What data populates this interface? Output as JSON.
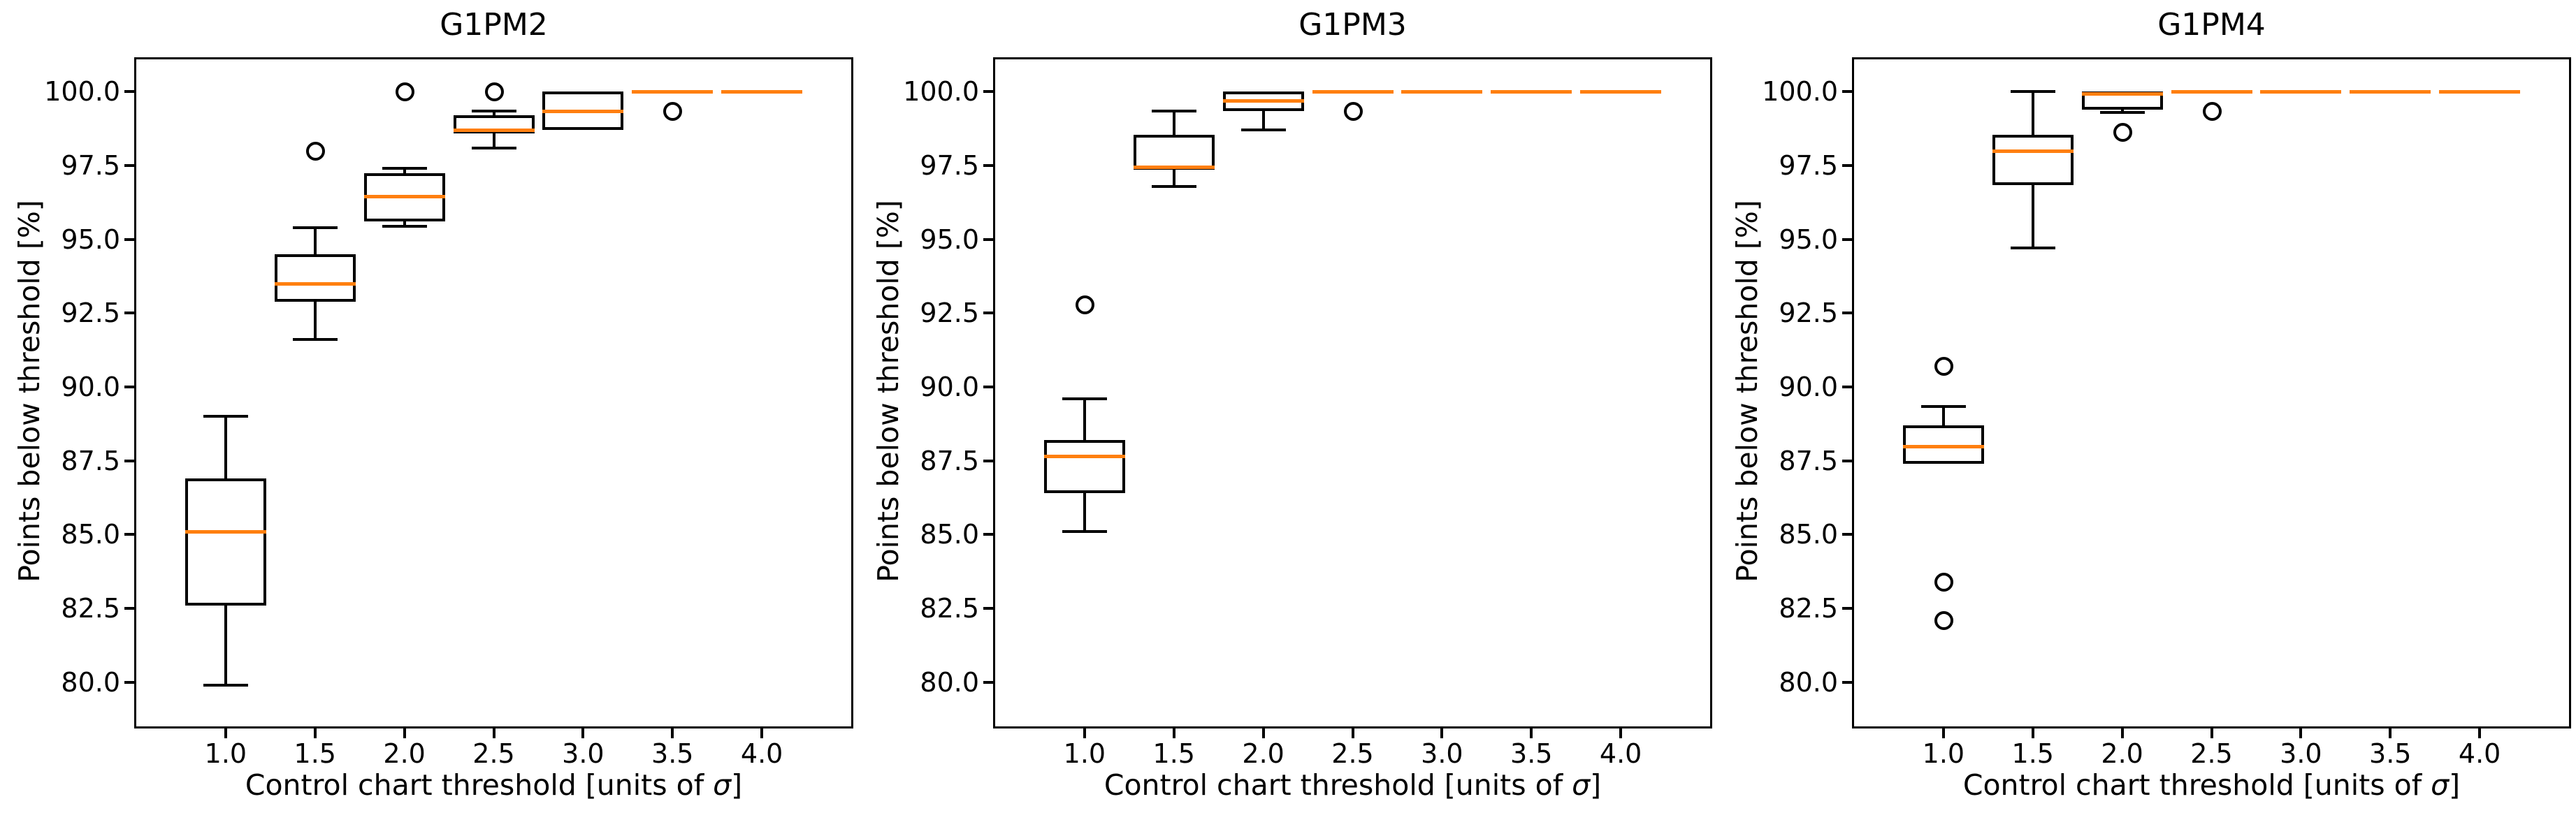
{
  "figure": {
    "background_color": "#ffffff",
    "box_line_color": "#000000",
    "median_color": "#ff7f0e",
    "flier_outline_color": "#000000"
  },
  "chart_data": [
    {
      "type": "boxplot",
      "title": "G1PM2",
      "xlabel": "Control chart threshold [units of σ]",
      "xlabel_pre": "Control chart threshold [units of ",
      "xlabel_sigma": "σ",
      "xlabel_post": "]",
      "ylabel": "Points below threshold [%]",
      "grid": "off",
      "legend": "none",
      "ylim": [
        78.5,
        101.1
      ],
      "xlim": [
        0,
        8
      ],
      "y_tick_values": [
        100.0,
        97.5,
        95.0,
        92.5,
        90.0,
        87.5,
        85.0,
        82.5,
        80.0
      ],
      "y_tick_labels": [
        "100.0",
        "97.5",
        "95.0",
        "92.5",
        "90.0",
        "87.5",
        "85.0",
        "82.5",
        "80.0"
      ],
      "x_tick_positions": [
        1,
        2,
        3,
        4,
        5,
        6,
        7
      ],
      "x_tick_labels": [
        "1.0",
        "1.5",
        "2.0",
        "2.5",
        "3.0",
        "3.5",
        "4.0"
      ],
      "boxes": [
        {
          "position": 1,
          "label": "1.0",
          "whislo": 79.9,
          "q1": 82.6,
          "med": 85.1,
          "q3": 86.9,
          "whishi": 89.0,
          "fliers": []
        },
        {
          "position": 2,
          "label": "1.5",
          "whislo": 91.6,
          "q1": 92.9,
          "med": 93.5,
          "q3": 94.5,
          "whishi": 95.4,
          "fliers": [
            98.0
          ]
        },
        {
          "position": 3,
          "label": "2.0",
          "whislo": 95.45,
          "q1": 95.6,
          "med": 96.45,
          "q3": 97.25,
          "whishi": 97.4,
          "fliers": [
            100.0
          ]
        },
        {
          "position": 4,
          "label": "2.5",
          "whislo": 98.1,
          "q1": 98.6,
          "med": 98.7,
          "q3": 99.2,
          "whishi": 99.35,
          "fliers": [
            100.0
          ]
        },
        {
          "position": 5,
          "label": "3.0",
          "whislo": 98.7,
          "q1": 98.7,
          "med": 99.35,
          "q3": 100.0,
          "whishi": 100.0,
          "fliers": []
        },
        {
          "position": 6,
          "label": "3.5",
          "whislo": 100.0,
          "q1": 100.0,
          "med": 100.0,
          "q3": 100.0,
          "whishi": 100.0,
          "fliers": [
            99.35
          ]
        },
        {
          "position": 7,
          "label": "4.0",
          "whislo": 100.0,
          "q1": 100.0,
          "med": 100.0,
          "q3": 100.0,
          "whishi": 100.0,
          "fliers": []
        }
      ]
    },
    {
      "type": "boxplot",
      "title": "G1PM3",
      "xlabel": "Control chart threshold [units of σ]",
      "xlabel_pre": "Control chart threshold [units of ",
      "xlabel_sigma": "σ",
      "xlabel_post": "]",
      "ylabel": "Points below threshold [%]",
      "grid": "off",
      "legend": "none",
      "ylim": [
        78.5,
        101.1
      ],
      "xlim": [
        0,
        8
      ],
      "y_tick_values": [
        100.0,
        97.5,
        95.0,
        92.5,
        90.0,
        87.5,
        85.0,
        82.5,
        80.0
      ],
      "y_tick_labels": [
        "100.0",
        "97.5",
        "95.0",
        "92.5",
        "90.0",
        "87.5",
        "85.0",
        "82.5",
        "80.0"
      ],
      "x_tick_positions": [
        1,
        2,
        3,
        4,
        5,
        6,
        7
      ],
      "x_tick_labels": [
        "1.0",
        "1.5",
        "2.0",
        "2.5",
        "3.0",
        "3.5",
        "4.0"
      ],
      "boxes": [
        {
          "position": 1,
          "label": "1.0",
          "whislo": 85.1,
          "q1": 86.4,
          "med": 87.65,
          "q3": 88.2,
          "whishi": 89.6,
          "fliers": [
            92.8
          ]
        },
        {
          "position": 2,
          "label": "1.5",
          "whislo": 96.8,
          "q1": 97.35,
          "med": 97.45,
          "q3": 98.55,
          "whishi": 99.35,
          "fliers": []
        },
        {
          "position": 3,
          "label": "2.0",
          "whislo": 98.7,
          "q1": 99.35,
          "med": 99.7,
          "q3": 100.0,
          "whishi": 100.0,
          "fliers": []
        },
        {
          "position": 4,
          "label": "2.5",
          "whislo": 100.0,
          "q1": 100.0,
          "med": 100.0,
          "q3": 100.0,
          "whishi": 100.0,
          "fliers": [
            99.35
          ]
        },
        {
          "position": 5,
          "label": "3.0",
          "whislo": 100.0,
          "q1": 100.0,
          "med": 100.0,
          "q3": 100.0,
          "whishi": 100.0,
          "fliers": []
        },
        {
          "position": 6,
          "label": "3.5",
          "whislo": 100.0,
          "q1": 100.0,
          "med": 100.0,
          "q3": 100.0,
          "whishi": 100.0,
          "fliers": []
        },
        {
          "position": 7,
          "label": "4.0",
          "whislo": 100.0,
          "q1": 100.0,
          "med": 100.0,
          "q3": 100.0,
          "whishi": 100.0,
          "fliers": []
        }
      ]
    },
    {
      "type": "boxplot",
      "title": "G1PM4",
      "xlabel": "Control chart threshold [units of σ]",
      "xlabel_pre": "Control chart threshold [units of ",
      "xlabel_sigma": "σ",
      "xlabel_post": "]",
      "ylabel": "Points below threshold [%]",
      "grid": "off",
      "legend": "none",
      "ylim": [
        78.5,
        101.1
      ],
      "xlim": [
        0,
        8
      ],
      "y_tick_values": [
        100.0,
        97.5,
        95.0,
        92.5,
        90.0,
        87.5,
        85.0,
        82.5,
        80.0
      ],
      "y_tick_labels": [
        "100.0",
        "97.5",
        "95.0",
        "92.5",
        "90.0",
        "87.5",
        "85.0",
        "82.5",
        "80.0"
      ],
      "x_tick_positions": [
        1,
        2,
        3,
        4,
        5,
        6,
        7
      ],
      "x_tick_labels": [
        "1.0",
        "1.5",
        "2.0",
        "2.5",
        "3.0",
        "3.5",
        "4.0"
      ],
      "boxes": [
        {
          "position": 1,
          "label": "1.0",
          "whislo": 87.4,
          "q1": 87.4,
          "med": 88.0,
          "q3": 88.7,
          "whishi": 89.35,
          "fliers": [
            90.7,
            83.4,
            82.1
          ]
        },
        {
          "position": 2,
          "label": "1.5",
          "whislo": 94.7,
          "q1": 96.85,
          "med": 98.0,
          "q3": 98.55,
          "whishi": 100.0,
          "fliers": []
        },
        {
          "position": 3,
          "label": "2.0",
          "whislo": 99.3,
          "q1": 99.4,
          "med": 99.95,
          "q3": 100.0,
          "whishi": 100.0,
          "fliers": [
            98.65
          ]
        },
        {
          "position": 4,
          "label": "2.5",
          "whislo": 100.0,
          "q1": 100.0,
          "med": 100.0,
          "q3": 100.0,
          "whishi": 100.0,
          "fliers": [
            99.35
          ]
        },
        {
          "position": 5,
          "label": "3.0",
          "whislo": 100.0,
          "q1": 100.0,
          "med": 100.0,
          "q3": 100.0,
          "whishi": 100.0,
          "fliers": []
        },
        {
          "position": 6,
          "label": "3.5",
          "whislo": 100.0,
          "q1": 100.0,
          "med": 100.0,
          "q3": 100.0,
          "whishi": 100.0,
          "fliers": []
        },
        {
          "position": 7,
          "label": "4.0",
          "whislo": 100.0,
          "q1": 100.0,
          "med": 100.0,
          "q3": 100.0,
          "whishi": 100.0,
          "fliers": []
        }
      ]
    }
  ]
}
